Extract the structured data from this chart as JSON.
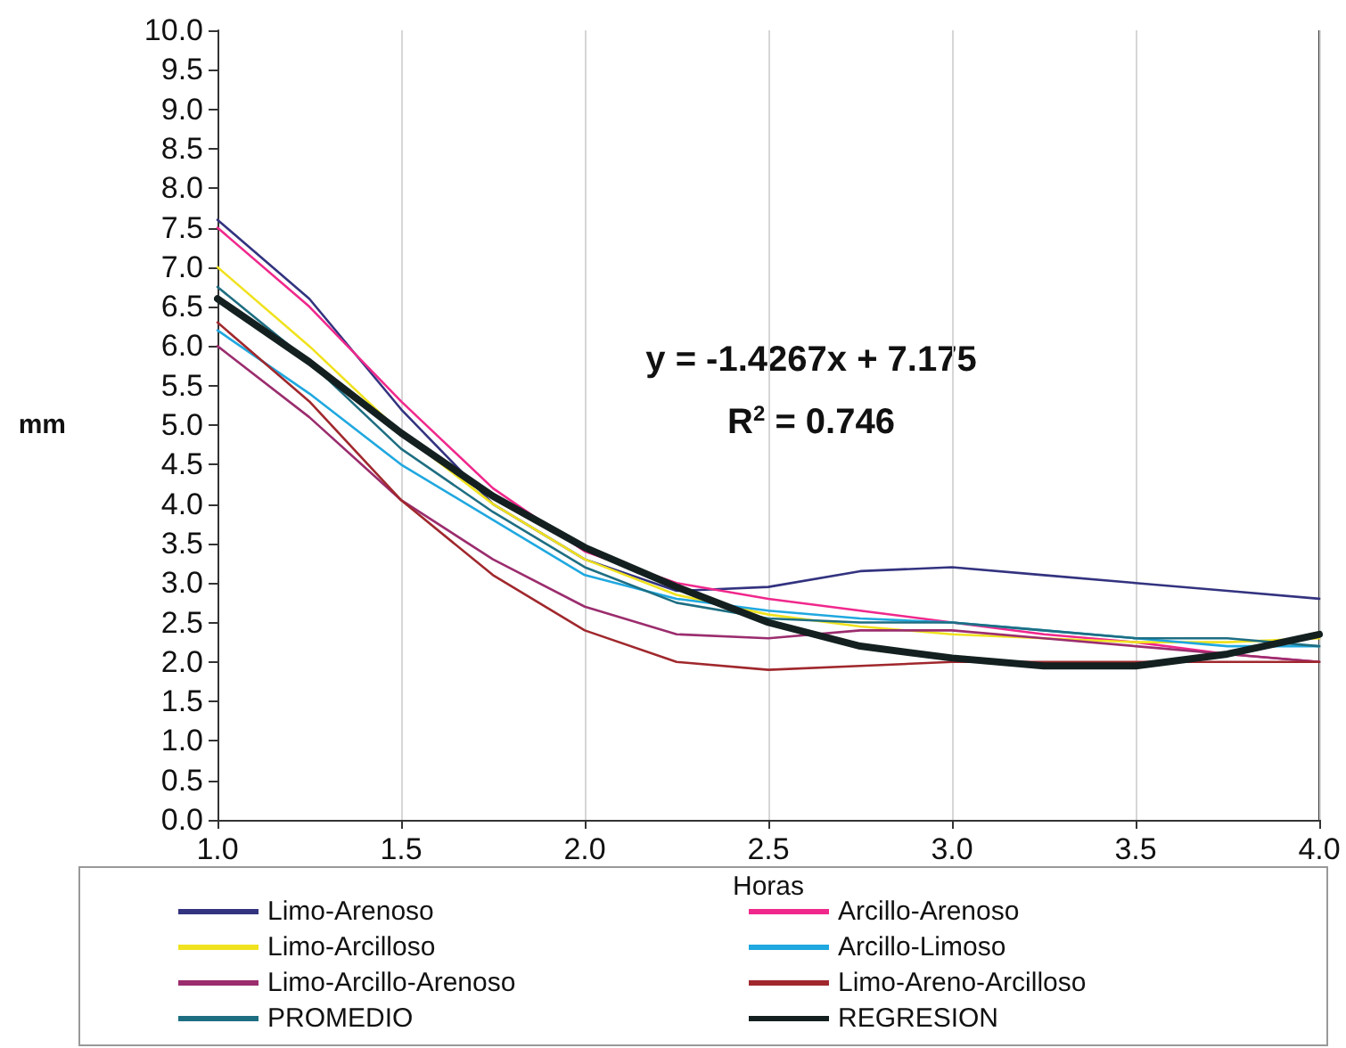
{
  "chart_data": {
    "type": "line",
    "xlabel": "Horas",
    "ylabel": "mm",
    "annotations": [
      "y = -1.4267x + 7.175",
      "R$^{2}$ = 0.746"
    ],
    "x": [
      1.0,
      1.25,
      1.5,
      1.75,
      2.0,
      2.25,
      2.5,
      2.75,
      3.0,
      3.25,
      3.5,
      3.75,
      4.0
    ],
    "series": [
      {
        "name": "Limo-Arenoso",
        "color": "#333380",
        "values": [
          7.6,
          6.6,
          5.2,
          4.0,
          3.3,
          2.9,
          2.95,
          3.15,
          3.2,
          3.1,
          3.0,
          2.9,
          2.8
        ]
      },
      {
        "name": "Arcillo-Arenoso",
        "color": "#f0288c",
        "values": [
          7.5,
          6.5,
          5.3,
          4.2,
          3.4,
          3.0,
          2.8,
          2.65,
          2.5,
          2.35,
          2.25,
          2.1,
          2.0
        ]
      },
      {
        "name": "Limo-Arcilloso",
        "color": "#f0e21e",
        "values": [
          7.0,
          6.0,
          4.9,
          4.0,
          3.3,
          2.85,
          2.6,
          2.45,
          2.35,
          2.3,
          2.25,
          2.25,
          2.3
        ]
      },
      {
        "name": "Arcillo-Limoso",
        "color": "#20a8e0",
        "values": [
          6.2,
          5.4,
          4.5,
          3.8,
          3.1,
          2.8,
          2.65,
          2.55,
          2.5,
          2.4,
          2.3,
          2.2,
          2.2
        ]
      },
      {
        "name": "Limo-Arcillo-Arenoso",
        "color": "#9b2d6e",
        "values": [
          6.0,
          5.1,
          4.05,
          3.3,
          2.7,
          2.35,
          2.3,
          2.4,
          2.4,
          2.3,
          2.2,
          2.1,
          2.0
        ]
      },
      {
        "name": "Limo-Areno-Arcilloso",
        "color": "#a0282d",
        "values": [
          6.3,
          5.3,
          4.05,
          3.1,
          2.4,
          2.0,
          1.9,
          1.95,
          2.0,
          2.0,
          2.0,
          2.0,
          2.0
        ]
      },
      {
        "name": "PROMEDIO",
        "color": "#1e6e82",
        "values": [
          6.75,
          5.8,
          4.7,
          3.9,
          3.2,
          2.75,
          2.55,
          2.5,
          2.5,
          2.4,
          2.3,
          2.3,
          2.2
        ]
      },
      {
        "name": "REGRESION",
        "type": "line",
        "color": "#142020",
        "x": [
          1.0,
          1.25,
          1.5,
          1.75,
          2.0,
          2.25,
          2.5,
          2.75,
          3.0,
          3.25,
          3.5,
          3.75,
          4.0
        ],
        "values": [
          6.6,
          5.8,
          4.9,
          4.1,
          3.45,
          2.95,
          2.5,
          2.2,
          2.05,
          1.95,
          1.95,
          2.1,
          2.35
        ]
      }
    ],
    "xlim": [
      1.0,
      4.0
    ],
    "xticks": [
      {
        "value": 1,
        "label": "1.0"
      },
      {
        "value": 1.5,
        "label": "1.5"
      },
      {
        "value": 2,
        "label": "2.0"
      },
      {
        "value": 2.5,
        "label": "2.5"
      },
      {
        "value": 3,
        "label": "3.0"
      },
      {
        "value": 3.5,
        "label": "3.5"
      },
      {
        "value": 4,
        "label": "4.0"
      }
    ],
    "ylim": [
      0,
      10
    ],
    "yticks": [
      {
        "value": 0,
        "label": "0.0"
      },
      {
        "value": 0.5,
        "label": "0.5"
      },
      {
        "value": 1,
        "label": "1.0"
      },
      {
        "value": 1.5,
        "label": "1.5"
      },
      {
        "value": 2,
        "label": "2.0"
      },
      {
        "value": 2.5,
        "label": "2.5"
      },
      {
        "value": 3,
        "label": "3.0"
      },
      {
        "value": 3.5,
        "label": "3.5"
      },
      {
        "value": 4,
        "label": "4.0"
      },
      {
        "value": 4.5,
        "label": "4.5"
      },
      {
        "value": 5,
        "label": "5.0"
      },
      {
        "value": 5.5,
        "label": "5.5"
      },
      {
        "value": 6,
        "label": "6.0"
      },
      {
        "value": 6.5,
        "label": "6.5"
      },
      {
        "value": 7,
        "label": "7.0"
      },
      {
        "value": 7.5,
        "label": "7.5"
      },
      {
        "value": 8,
        "label": "8.0"
      },
      {
        "value": 8.5,
        "label": "8.5"
      },
      {
        "value": 9,
        "label": "9.0"
      },
      {
        "value": 9.5,
        "label": "9.5"
      },
      {
        "value": 10,
        "label": "10.0"
      }
    ],
    "grid": "x",
    "legend": "bottom",
    "marker": "none",
    "line_style": "solid"
  }
}
